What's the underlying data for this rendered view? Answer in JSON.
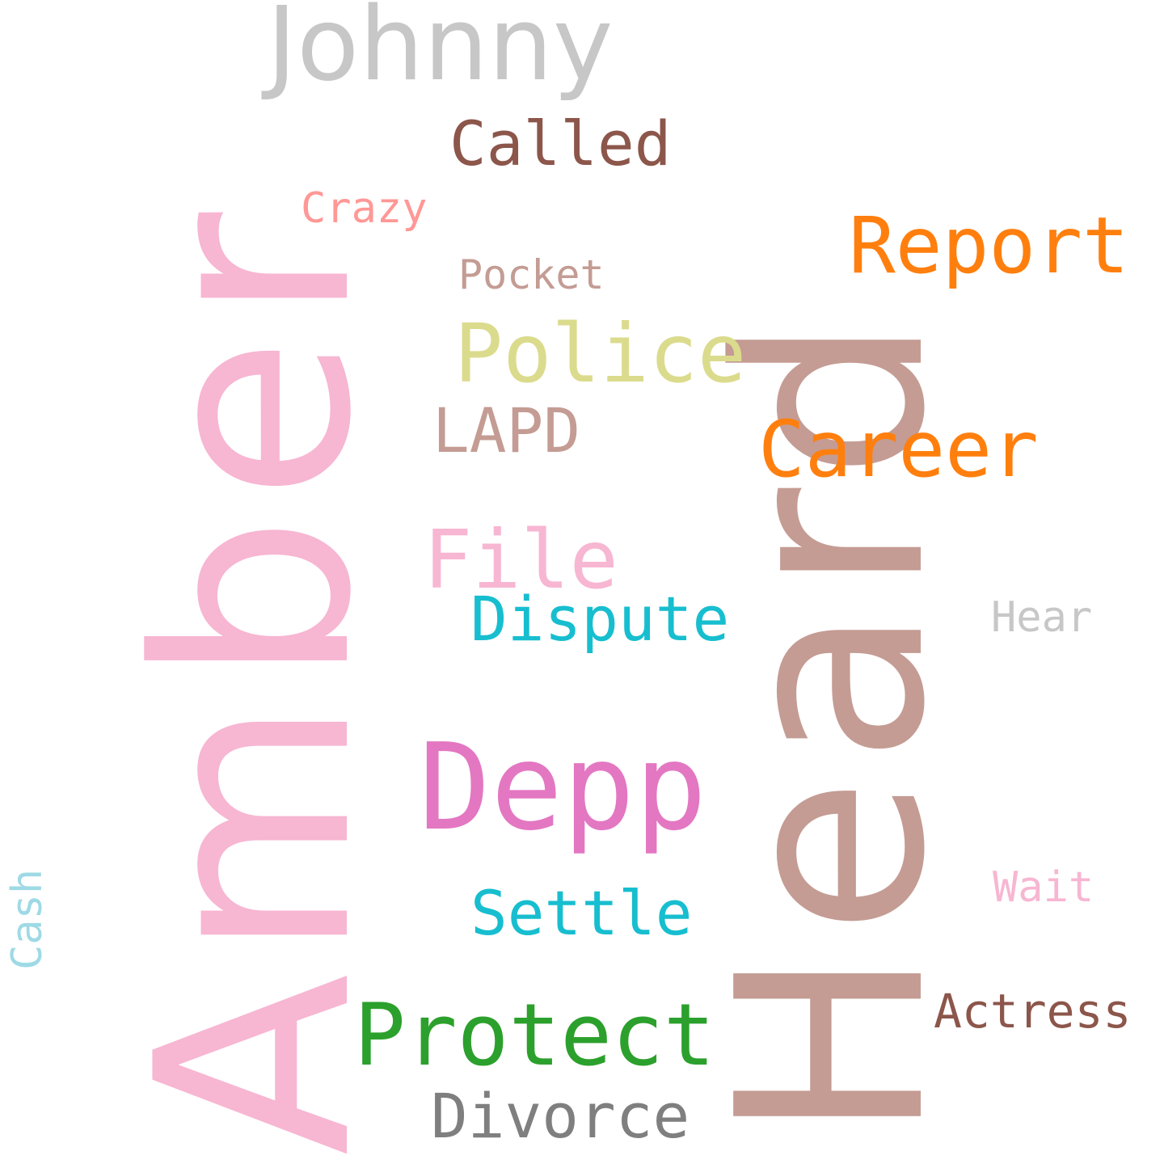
{
  "words": {
    "amber": {
      "text": "Amber",
      "color": "#f7b6d2"
    },
    "heard": {
      "text": "Heard",
      "color": "#c49c94"
    },
    "johnny": {
      "text": "Johnny",
      "color": "#c7c7c7"
    },
    "called": {
      "text": "Called",
      "color": "#8c564b"
    },
    "crazy": {
      "text": "Crazy",
      "color": "#ff9896"
    },
    "report": {
      "text": "Report",
      "color": "#ff7f0e"
    },
    "pocket": {
      "text": "Pocket",
      "color": "#c49c94"
    },
    "police": {
      "text": "Police",
      "color": "#dbdb8d"
    },
    "lapd": {
      "text": "LAPD",
      "color": "#c49c94"
    },
    "career": {
      "text": "Career",
      "color": "#ff7f0e"
    },
    "file": {
      "text": "File",
      "color": "#f7b6d2"
    },
    "dispute": {
      "text": "Dispute",
      "color": "#17becf"
    },
    "hear": {
      "text": "Hear",
      "color": "#c7c7c7"
    },
    "depp": {
      "text": "Depp",
      "color": "#e377c2"
    },
    "wait": {
      "text": "Wait",
      "color": "#f7b6d2"
    },
    "settle": {
      "text": "Settle",
      "color": "#17becf"
    },
    "cash": {
      "text": "Cash",
      "color": "#9edae5"
    },
    "actress": {
      "text": "Actress",
      "color": "#8c564b"
    },
    "protect": {
      "text": "Protect",
      "color": "#2ca02c"
    },
    "divorce": {
      "text": "Divorce",
      "color": "#7f7f7f"
    }
  }
}
